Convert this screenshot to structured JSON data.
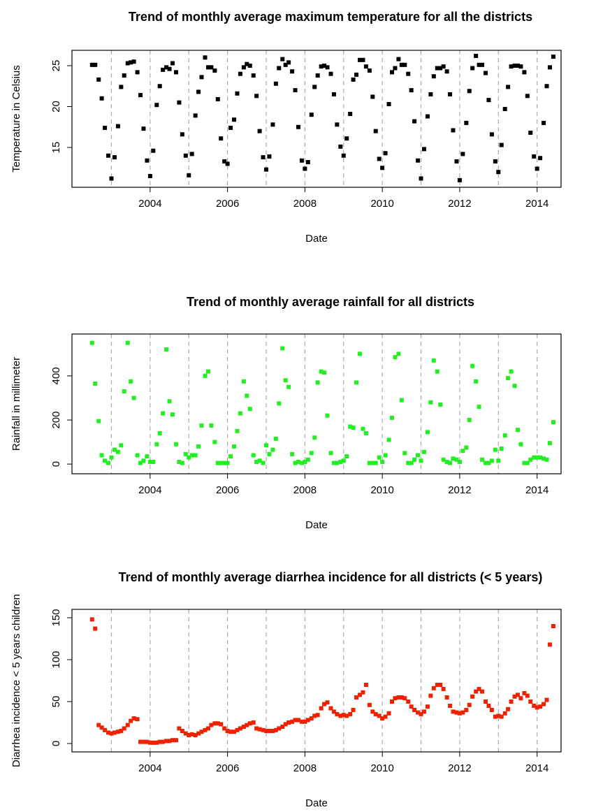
{
  "chart_data": [
    {
      "type": "scatter",
      "title": "Trend of monthly average maximum temperature for all the districts",
      "xlabel": "Date",
      "ylabel": "Temperature in Celsius",
      "color": "#000000",
      "xlim": [
        2001.98,
        2014.62
      ],
      "ylim": [
        10.13,
        26.88
      ],
      "xticks": [
        2004,
        2006,
        2008,
        2010,
        2012,
        2014
      ],
      "yticks": [
        15,
        20,
        25
      ],
      "vlines": [
        2003,
        2004,
        2005,
        2006,
        2007,
        2008,
        2009,
        2010,
        2011,
        2012,
        2013,
        2014
      ],
      "x": [
        2002.5,
        2002.58,
        2002.67,
        2002.75,
        2002.83,
        2002.92,
        2003,
        2003.08,
        2003.17,
        2003.25,
        2003.33,
        2003.42,
        2003.5,
        2003.58,
        2003.67,
        2003.75,
        2003.83,
        2003.92,
        2004,
        2004.08,
        2004.17,
        2004.25,
        2004.33,
        2004.42,
        2004.5,
        2004.58,
        2004.67,
        2004.75,
        2004.83,
        2004.92,
        2005,
        2005.08,
        2005.17,
        2005.25,
        2005.33,
        2005.42,
        2005.5,
        2005.58,
        2005.67,
        2005.75,
        2005.83,
        2005.92,
        2006,
        2006.08,
        2006.17,
        2006.25,
        2006.33,
        2006.42,
        2006.5,
        2006.58,
        2006.67,
        2006.75,
        2006.83,
        2006.92,
        2007,
        2007.08,
        2007.17,
        2007.25,
        2007.33,
        2007.42,
        2007.5,
        2007.58,
        2007.67,
        2007.75,
        2007.83,
        2007.92,
        2008,
        2008.08,
        2008.17,
        2008.25,
        2008.33,
        2008.42,
        2008.5,
        2008.58,
        2008.67,
        2008.75,
        2008.83,
        2008.92,
        2009,
        2009.08,
        2009.17,
        2009.25,
        2009.33,
        2009.42,
        2009.5,
        2009.58,
        2009.67,
        2009.75,
        2009.83,
        2009.92,
        2010,
        2010.08,
        2010.17,
        2010.25,
        2010.33,
        2010.42,
        2010.5,
        2010.58,
        2010.67,
        2010.75,
        2010.83,
        2010.92,
        2011,
        2011.08,
        2011.17,
        2011.25,
        2011.33,
        2011.42,
        2011.5,
        2011.58,
        2011.67,
        2011.75,
        2011.83,
        2011.92,
        2012,
        2012.08,
        2012.17,
        2012.25,
        2012.33,
        2012.42,
        2012.5,
        2012.58,
        2012.67,
        2012.75,
        2012.83,
        2012.92,
        2013,
        2013.08,
        2013.17,
        2013.25,
        2013.33,
        2013.42,
        2013.5,
        2013.58,
        2013.67,
        2013.75,
        2013.83,
        2013.92,
        2014,
        2014.08,
        2014.17,
        2014.25,
        2014.33,
        2014.42
      ],
      "values": [
        25.1,
        25.1,
        23.3,
        21.0,
        17.4,
        14.0,
        11.2,
        13.8,
        17.6,
        22.4,
        23.8,
        25.3,
        25.4,
        25.5,
        24.2,
        21.4,
        17.3,
        13.4,
        11.5,
        14.6,
        20.2,
        22.5,
        24.5,
        24.8,
        24.6,
        25.3,
        24.2,
        20.5,
        16.6,
        14.0,
        11.6,
        14.2,
        18.9,
        21.8,
        23.6,
        26.0,
        24.8,
        24.8,
        24.4,
        20.9,
        16.1,
        13.3,
        13.0,
        17.4,
        18.4,
        21.6,
        24.0,
        24.8,
        25.2,
        25.0,
        23.8,
        21.3,
        17.0,
        13.8,
        12.3,
        13.9,
        17.8,
        22.8,
        24.7,
        25.8,
        25.1,
        25.4,
        24.3,
        22.0,
        17.5,
        13.4,
        12.4,
        13.2,
        19.0,
        22.4,
        23.8,
        24.9,
        25.0,
        24.8,
        24.0,
        21.5,
        17.8,
        15.1,
        14.0,
        16.1,
        19.1,
        23.3,
        23.9,
        25.7,
        25.7,
        24.9,
        24.4,
        21.2,
        17.0,
        13.6,
        12.5,
        14.3,
        20.3,
        24.2,
        24.7,
        25.8,
        25.1,
        25.1,
        24.0,
        22.0,
        18.2,
        13.4,
        11.2,
        14.8,
        18.8,
        21.5,
        23.7,
        24.7,
        24.7,
        24.9,
        24.3,
        21.5,
        17.1,
        13.3,
        11.0,
        14.2,
        18.0,
        21.9,
        24.7,
        26.2,
        25.1,
        25.1,
        24.1,
        20.8,
        16.6,
        13.3,
        12.0,
        15.3,
        19.7,
        22.4,
        24.9,
        25.0,
        25.0,
        24.9,
        24.2,
        21.3,
        16.8,
        13.9,
        12.4,
        13.7,
        18.0,
        22.5,
        24.8,
        26.1
      ]
    },
    {
      "type": "scatter",
      "title": "Trend of monthly average rainfall for all districts",
      "xlabel": "Date",
      "ylabel": "Rainfall in millimeter",
      "color": "#22ee22",
      "xlim": [
        2001.98,
        2014.62
      ],
      "ylim": [
        -44,
        590
      ],
      "xticks": [
        2004,
        2006,
        2008,
        2010,
        2012,
        2014
      ],
      "yticks": [
        0,
        200,
        400
      ],
      "vlines": [
        2003,
        2004,
        2005,
        2006,
        2007,
        2008,
        2009,
        2010,
        2011,
        2012,
        2013,
        2014
      ],
      "x": [
        2002.5,
        2002.58,
        2002.67,
        2002.75,
        2002.83,
        2002.92,
        2003,
        2003.08,
        2003.17,
        2003.25,
        2003.33,
        2003.42,
        2003.5,
        2003.58,
        2003.67,
        2003.75,
        2003.83,
        2003.92,
        2004,
        2004.08,
        2004.17,
        2004.25,
        2004.33,
        2004.42,
        2004.5,
        2004.58,
        2004.67,
        2004.75,
        2004.83,
        2004.92,
        2005,
        2005.08,
        2005.17,
        2005.25,
        2005.33,
        2005.42,
        2005.5,
        2005.58,
        2005.67,
        2005.75,
        2005.83,
        2005.92,
        2006,
        2006.08,
        2006.17,
        2006.25,
        2006.33,
        2006.42,
        2006.5,
        2006.58,
        2006.67,
        2006.75,
        2006.83,
        2006.92,
        2007,
        2007.08,
        2007.17,
        2007.25,
        2007.33,
        2007.42,
        2007.5,
        2007.58,
        2007.67,
        2007.75,
        2007.83,
        2007.92,
        2008,
        2008.08,
        2008.17,
        2008.25,
        2008.33,
        2008.42,
        2008.5,
        2008.58,
        2008.67,
        2008.75,
        2008.83,
        2008.92,
        2009,
        2009.08,
        2009.17,
        2009.25,
        2009.33,
        2009.42,
        2009.5,
        2009.58,
        2009.67,
        2009.75,
        2009.83,
        2009.92,
        2010,
        2010.08,
        2010.17,
        2010.25,
        2010.33,
        2010.42,
        2010.5,
        2010.58,
        2010.67,
        2010.75,
        2010.83,
        2010.92,
        2011,
        2011.08,
        2011.17,
        2011.25,
        2011.33,
        2011.42,
        2011.5,
        2011.58,
        2011.67,
        2011.75,
        2011.83,
        2011.92,
        2012,
        2012.08,
        2012.17,
        2012.25,
        2012.33,
        2012.42,
        2012.5,
        2012.58,
        2012.67,
        2012.75,
        2012.83,
        2012.92,
        2013,
        2013.08,
        2013.17,
        2013.25,
        2013.33,
        2013.42,
        2013.5,
        2013.58,
        2013.67,
        2013.75,
        2013.83,
        2013.92,
        2014,
        2014.08,
        2014.17,
        2014.25,
        2014.33,
        2014.42
      ],
      "values": [
        550,
        365,
        195,
        40,
        15,
        5,
        30,
        65,
        55,
        85,
        330,
        550,
        375,
        300,
        40,
        5,
        15,
        35,
        10,
        10,
        90,
        140,
        230,
        520,
        285,
        225,
        90,
        10,
        5,
        45,
        30,
        40,
        40,
        80,
        175,
        400,
        420,
        175,
        100,
        5,
        5,
        5,
        5,
        35,
        80,
        150,
        230,
        375,
        310,
        250,
        40,
        10,
        15,
        5,
        85,
        45,
        65,
        115,
        275,
        525,
        380,
        350,
        45,
        5,
        10,
        5,
        10,
        20,
        50,
        120,
        370,
        420,
        415,
        220,
        50,
        5,
        5,
        10,
        15,
        35,
        170,
        165,
        370,
        500,
        160,
        140,
        5,
        5,
        5,
        30,
        10,
        40,
        110,
        210,
        485,
        500,
        290,
        50,
        5,
        5,
        20,
        40,
        15,
        55,
        145,
        280,
        470,
        420,
        270,
        20,
        10,
        5,
        25,
        20,
        10,
        60,
        75,
        200,
        445,
        375,
        260,
        20,
        5,
        5,
        15,
        65,
        15,
        70,
        130,
        390,
        420,
        355,
        155,
        90,
        5,
        5,
        20,
        30,
        30,
        30,
        25,
        20,
        95,
        190
      ]
    },
    {
      "type": "scatter",
      "title": "Trend of monthly average diarrhea incidence for all districts (< 5 years)",
      "xlabel": "Date",
      "ylabel": "Diarrhea incidence < 5 years children",
      "color": "#ee2200",
      "xlim": [
        2001.98,
        2014.62
      ],
      "ylim": [
        -10,
        160
      ],
      "xticks": [
        2004,
        2006,
        2008,
        2010,
        2012,
        2014
      ],
      "yticks": [
        0,
        50,
        100,
        150
      ],
      "vlines": [
        2003,
        2004,
        2005,
        2006,
        2007,
        2008,
        2009,
        2010,
        2011,
        2012,
        2013,
        2014
      ],
      "x": [
        2002.5,
        2002.58,
        2002.67,
        2002.75,
        2002.83,
        2002.92,
        2003,
        2003.08,
        2003.17,
        2003.25,
        2003.33,
        2003.42,
        2003.5,
        2003.58,
        2003.67,
        2003.75,
        2003.83,
        2003.92,
        2004,
        2004.08,
        2004.17,
        2004.25,
        2004.33,
        2004.42,
        2004.5,
        2004.58,
        2004.67,
        2004.75,
        2004.83,
        2004.92,
        2005,
        2005.08,
        2005.17,
        2005.25,
        2005.33,
        2005.42,
        2005.5,
        2005.58,
        2005.67,
        2005.75,
        2005.83,
        2005.92,
        2006,
        2006.08,
        2006.17,
        2006.25,
        2006.33,
        2006.42,
        2006.5,
        2006.58,
        2006.67,
        2006.75,
        2006.83,
        2006.92,
        2007,
        2007.08,
        2007.17,
        2007.25,
        2007.33,
        2007.42,
        2007.5,
        2007.58,
        2007.67,
        2007.75,
        2007.83,
        2007.92,
        2008,
        2008.08,
        2008.17,
        2008.25,
        2008.33,
        2008.42,
        2008.5,
        2008.58,
        2008.67,
        2008.75,
        2008.83,
        2008.92,
        2009,
        2009.08,
        2009.17,
        2009.25,
        2009.33,
        2009.42,
        2009.5,
        2009.58,
        2009.67,
        2009.75,
        2009.83,
        2009.92,
        2010,
        2010.08,
        2010.17,
        2010.25,
        2010.33,
        2010.42,
        2010.5,
        2010.58,
        2010.67,
        2010.75,
        2010.83,
        2010.92,
        2011,
        2011.08,
        2011.17,
        2011.25,
        2011.33,
        2011.42,
        2011.5,
        2011.58,
        2011.67,
        2011.75,
        2011.83,
        2011.92,
        2012,
        2012.08,
        2012.17,
        2012.25,
        2012.33,
        2012.42,
        2012.5,
        2012.58,
        2012.67,
        2012.75,
        2012.83,
        2012.92,
        2013,
        2013.08,
        2013.17,
        2013.25,
        2013.33,
        2013.42,
        2013.5,
        2013.58,
        2013.67,
        2013.75,
        2013.83,
        2013.92,
        2014,
        2014.08,
        2014.17,
        2014.25,
        2014.33,
        2014.42
      ],
      "values": [
        148,
        137,
        22,
        19,
        16,
        13,
        12,
        13,
        14,
        15,
        18,
        22,
        27,
        30,
        29,
        2,
        2,
        2,
        1,
        1,
        1,
        2,
        2,
        3,
        3,
        4,
        4,
        18,
        15,
        12,
        10,
        11,
        10,
        12,
        14,
        16,
        18,
        22,
        24,
        24,
        23,
        18,
        15,
        14,
        14,
        16,
        18,
        20,
        22,
        24,
        25,
        18,
        17,
        16,
        15,
        15,
        15,
        16,
        18,
        20,
        23,
        25,
        26,
        28,
        28,
        26,
        26,
        28,
        30,
        33,
        34,
        42,
        47,
        49,
        42,
        38,
        35,
        33,
        34,
        33,
        35,
        40,
        55,
        58,
        61,
        70,
        46,
        38,
        35,
        33,
        30,
        32,
        36,
        50,
        54,
        55,
        55,
        54,
        50,
        44,
        40,
        37,
        35,
        38,
        44,
        57,
        66,
        70,
        70,
        65,
        55,
        45,
        38,
        37,
        36,
        37,
        40,
        46,
        56,
        62,
        65,
        62,
        50,
        45,
        40,
        32,
        33,
        32,
        36,
        41,
        50,
        56,
        58,
        54,
        60,
        57,
        50,
        45,
        43,
        44,
        47,
        52,
        118,
        140
      ]
    }
  ]
}
